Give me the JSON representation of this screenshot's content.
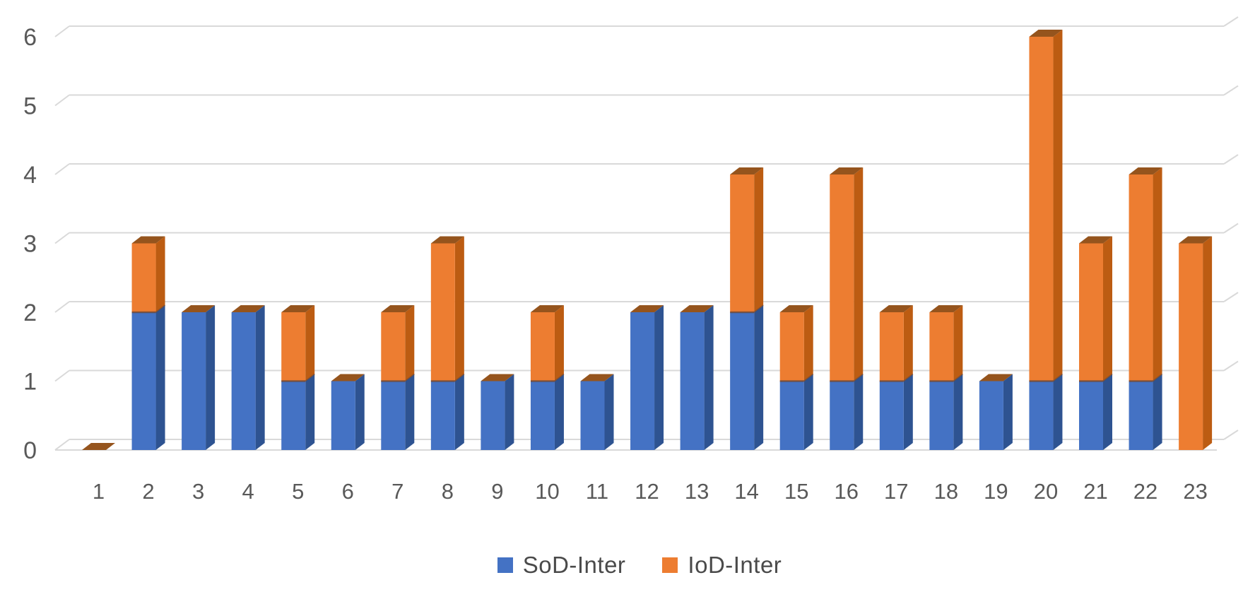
{
  "chart_data": {
    "type": "bar",
    "subtype": "stacked-column-3d",
    "title": "",
    "xlabel": "",
    "ylabel": "",
    "categories": [
      "1",
      "2",
      "3",
      "4",
      "5",
      "6",
      "7",
      "8",
      "9",
      "10",
      "11",
      "12",
      "13",
      "14",
      "15",
      "16",
      "17",
      "18",
      "19",
      "20",
      "21",
      "22",
      "23"
    ],
    "series": [
      {
        "name": "SoD-Inter",
        "color": "#4472C4",
        "side_color": "#2E5391",
        "values": [
          0,
          2,
          2,
          2,
          1,
          1,
          1,
          1,
          1,
          1,
          1,
          2,
          2,
          2,
          1,
          1,
          1,
          1,
          1,
          1,
          1,
          1,
          0
        ]
      },
      {
        "name": "IoD-Inter",
        "color": "#ED7D31",
        "side_color": "#BC5C12",
        "top_color": "#95541D",
        "values": [
          0,
          1,
          0,
          0,
          1,
          0,
          1,
          2,
          0,
          1,
          0,
          0,
          0,
          2,
          1,
          3,
          1,
          1,
          0,
          5,
          2,
          3,
          3
        ]
      }
    ],
    "ylim": [
      0,
      6
    ],
    "y_ticks": [
      "0",
      "1",
      "2",
      "3",
      "4",
      "5",
      "6"
    ],
    "grid": true,
    "legend_position": "bottom",
    "colors": {
      "gridline": "#D9D9D9",
      "axis_text": "#595959",
      "segment_boundary": "#6E4632",
      "background": "#FFFFFF"
    }
  }
}
